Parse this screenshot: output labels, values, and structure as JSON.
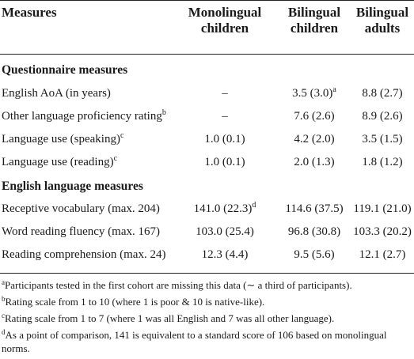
{
  "table": {
    "headers": {
      "measures": "Measures",
      "monolingual_line1": "Monolingual",
      "monolingual_line2": "children",
      "bilingual_children_line1": "Bilingual",
      "bilingual_children_line2": "children",
      "bilingual_adults_line1": "Bilingual",
      "bilingual_adults_line2": "adults"
    },
    "sections": {
      "questionnaire": "Questionnaire measures",
      "english": "English language measures"
    },
    "rows": [
      {
        "label": "English AoA (in years)",
        "label_sup": "",
        "mono": "–",
        "mono_sup": "",
        "bichild": "3.5 (3.0)",
        "bichild_sup": "a",
        "biadult": "8.8 (2.7)"
      },
      {
        "label": "Other language proficiency rating",
        "label_sup": "b",
        "mono": "–",
        "mono_sup": "",
        "bichild": "7.6 (2.6)",
        "bichild_sup": "",
        "biadult": "8.9 (2.6)"
      },
      {
        "label": "Language use (speaking)",
        "label_sup": "c",
        "mono": "1.0 (0.1)",
        "mono_sup": "",
        "bichild": "4.2 (2.0)",
        "bichild_sup": "",
        "biadult": "3.5 (1.5)"
      },
      {
        "label": "Language use (reading)",
        "label_sup": "c",
        "mono": "1.0 (0.1)",
        "mono_sup": "",
        "bichild": "2.0 (1.3)",
        "bichild_sup": "",
        "biadult": "1.8 (1.2)"
      },
      {
        "label": "Receptive vocabulary (max. 204)",
        "label_sup": "",
        "mono": "141.0 (22.3)",
        "mono_sup": "d",
        "bichild": "114.6 (37.5)",
        "bichild_sup": "",
        "biadult": "119.1 (21.0)"
      },
      {
        "label": "Word reading fluency (max. 167)",
        "label_sup": "",
        "mono": "103.0 (25.4)",
        "mono_sup": "",
        "bichild": "96.8 (30.8)",
        "bichild_sup": "",
        "biadult": "103.3 (20.2)"
      },
      {
        "label": "Reading comprehension (max. 24)",
        "label_sup": "",
        "mono": "12.3 (4.4)",
        "mono_sup": "",
        "bichild": "9.5 (5.6)",
        "bichild_sup": "",
        "biadult": "12.1 (2.7)"
      }
    ]
  },
  "footnotes": [
    {
      "mark": "a",
      "text": "Participants tested in the first cohort are missing this data (∼ a third of participants)."
    },
    {
      "mark": "b",
      "text": "Rating scale from 1 to 10 (where 1 is poor & 10 is native-like)."
    },
    {
      "mark": "c",
      "text": "Rating scale from 1 to 7 (where 1 was all English and 7 was all other language)."
    },
    {
      "mark": "d",
      "text": "As a point of comparison, 141 is equivalent to a standard score of 106 based on monolingual norms."
    }
  ]
}
